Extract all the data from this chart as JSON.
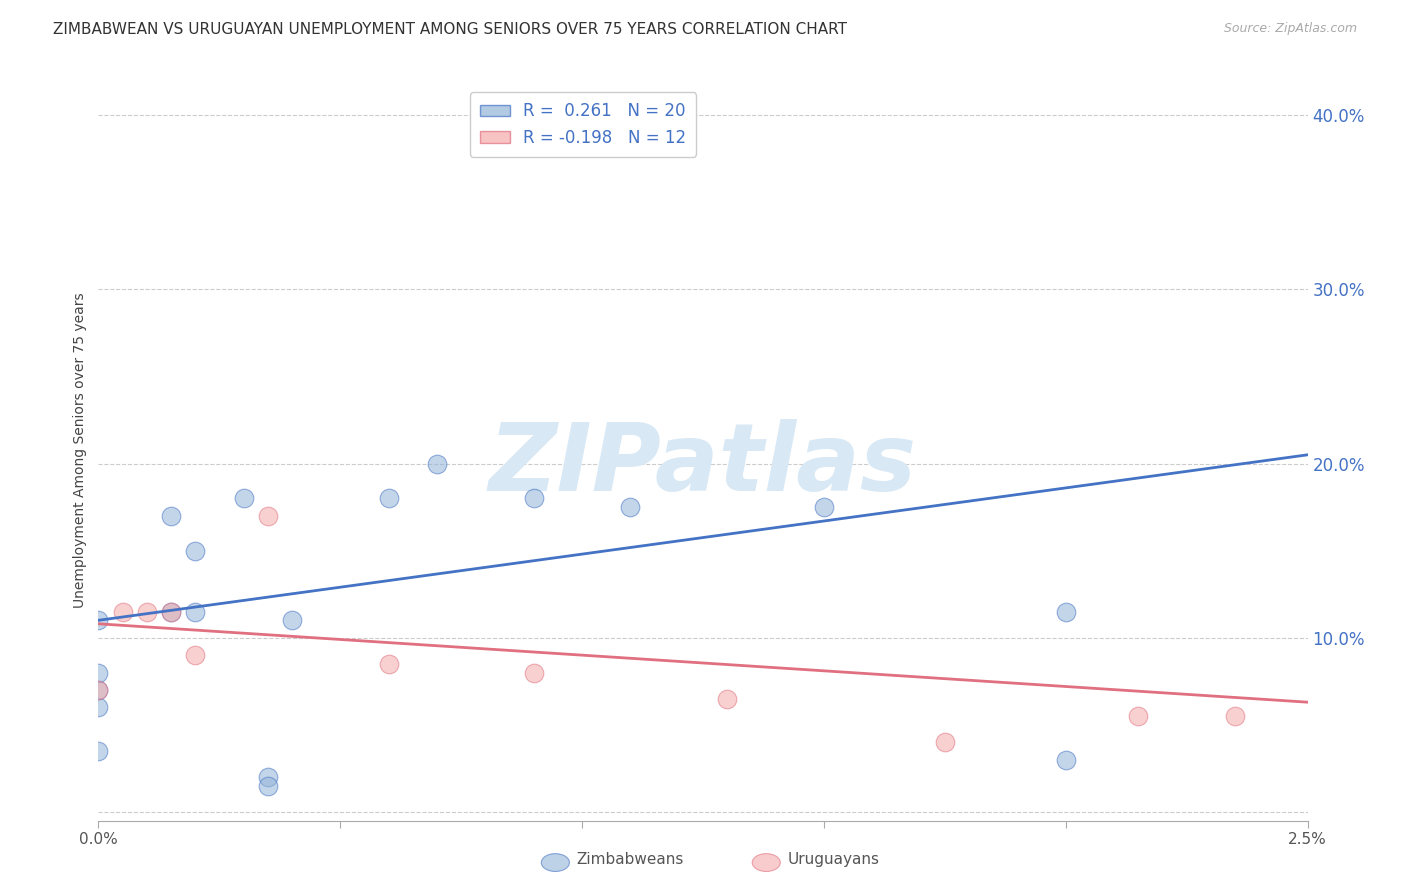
{
  "title": "ZIMBABWEAN VS URUGUAYAN UNEMPLOYMENT AMONG SENIORS OVER 75 YEARS CORRELATION CHART",
  "source": "Source: ZipAtlas.com",
  "ylabel": "Unemployment Among Seniors over 75 years",
  "watermark": "ZIPatlas",
  "zimbabwean_R": 0.261,
  "zimbabwean_N": 20,
  "uruguayan_R": -0.198,
  "uruguayan_N": 12,
  "blue_color": "#92B4D7",
  "pink_color": "#F4AAAA",
  "trend_blue": "#4472C4",
  "trend_pink": "#E07080",
  "axis_label_color": "#4472C4",
  "zimbabwean_x": [
    0.0,
    0.0,
    0.0,
    0.0,
    0.0,
    0.0015,
    0.0015,
    0.002,
    0.002,
    0.003,
    0.0035,
    0.0035,
    0.004,
    0.006,
    0.007,
    0.009,
    0.011,
    0.015,
    0.02,
    0.02
  ],
  "zimbabwean_y": [
    0.035,
    0.06,
    0.07,
    0.08,
    0.11,
    0.115,
    0.17,
    0.115,
    0.15,
    0.18,
    0.02,
    0.015,
    0.11,
    0.18,
    0.2,
    0.18,
    0.175,
    0.175,
    0.115,
    0.03
  ],
  "uruguayan_x": [
    0.0,
    0.0005,
    0.001,
    0.0015,
    0.002,
    0.0035,
    0.006,
    0.009,
    0.013,
    0.0175,
    0.0215,
    0.0235
  ],
  "uruguayan_y": [
    0.07,
    0.115,
    0.115,
    0.115,
    0.09,
    0.17,
    0.085,
    0.08,
    0.065,
    0.04,
    0.055,
    0.055
  ],
  "xlim": [
    0.0,
    0.025
  ],
  "ylim": [
    -0.005,
    0.42
  ],
  "yticks": [
    0.1,
    0.2,
    0.3,
    0.4
  ],
  "ytick_labels": [
    "10.0%",
    "20.0%",
    "30.0%",
    "40.0%"
  ],
  "xticks": [
    0.0,
    0.005,
    0.01,
    0.015,
    0.02,
    0.025
  ],
  "xtick_labels": [
    "0.0%",
    "",
    "",
    "",
    "",
    "2.5%"
  ],
  "grid_color": "#CCCCCC",
  "bg_color": "#FFFFFF",
  "title_fontsize": 11,
  "axis_fontsize": 11,
  "legend_fontsize": 12,
  "watermark_fontsize": 68,
  "watermark_color": "#D8E8F5",
  "marker_size": 180,
  "blue_intercept": 0.11,
  "blue_slope": 3.8,
  "pink_intercept": 0.108,
  "pink_slope": -1.8
}
